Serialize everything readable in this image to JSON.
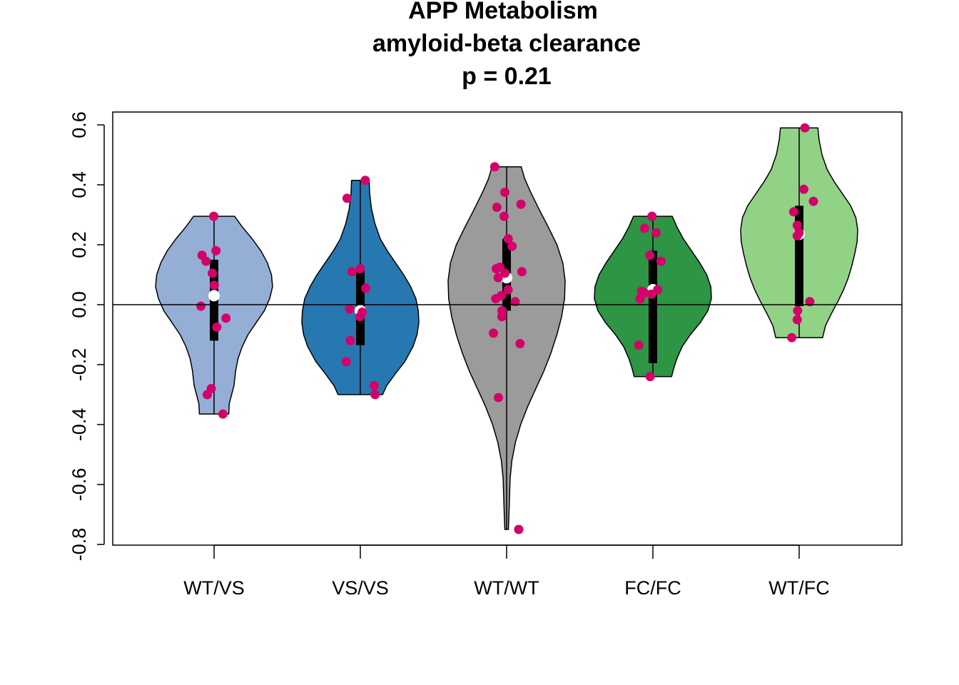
{
  "chart_data": {
    "type": "violin",
    "title_lines": [
      "APP Metabolism",
      "amyloid-beta clearance",
      "p = 0.21"
    ],
    "xlabel": "",
    "ylabel": "",
    "ylim": [
      -0.8,
      0.6
    ],
    "y_ticks": [
      -0.8,
      -0.6,
      -0.4,
      -0.2,
      0.0,
      0.2,
      0.4,
      0.6
    ],
    "y_tick_labels": [
      "-0.8",
      "-0.6",
      "-0.4",
      "-0.2",
      "0.0",
      "0.2",
      "0.4",
      "0.6"
    ],
    "reference_line": 0.0,
    "categories": [
      "WT/VS",
      "VS/VS",
      "WT/WT",
      "FC/FC",
      "WT/FC"
    ],
    "point_color": "#d4006a",
    "median_color": "#ffffff",
    "series": [
      {
        "fill": "#95aed6",
        "min": -0.365,
        "q1": -0.12,
        "median": 0.03,
        "q3": 0.15,
        "max": 0.295,
        "density": [
          [
            -0.365,
            0.25
          ],
          [
            -0.33,
            0.26
          ],
          [
            -0.3,
            0.3
          ],
          [
            -0.27,
            0.34
          ],
          [
            -0.22,
            0.37
          ],
          [
            -0.18,
            0.41
          ],
          [
            -0.14,
            0.48
          ],
          [
            -0.1,
            0.58
          ],
          [
            -0.06,
            0.72
          ],
          [
            -0.02,
            0.86
          ],
          [
            0.02,
            0.95
          ],
          [
            0.06,
            1.0
          ],
          [
            0.1,
            0.98
          ],
          [
            0.14,
            0.91
          ],
          [
            0.18,
            0.8
          ],
          [
            0.22,
            0.65
          ],
          [
            0.26,
            0.48
          ],
          [
            0.295,
            0.35
          ]
        ],
        "points": [
          0.295,
          0.18,
          0.165,
          0.145,
          0.105,
          0.065,
          -0.005,
          -0.045,
          -0.075,
          -0.28,
          -0.3,
          -0.365
        ]
      },
      {
        "fill": "#2778b1",
        "min": -0.3,
        "q1": -0.135,
        "median": -0.02,
        "q3": 0.115,
        "max": 0.415,
        "density": [
          [
            -0.3,
            0.38
          ],
          [
            -0.27,
            0.45
          ],
          [
            -0.23,
            0.6
          ],
          [
            -0.19,
            0.76
          ],
          [
            -0.14,
            0.9
          ],
          [
            -0.1,
            0.97
          ],
          [
            -0.06,
            1.0
          ],
          [
            -0.02,
            0.99
          ],
          [
            0.02,
            0.95
          ],
          [
            0.06,
            0.86
          ],
          [
            0.1,
            0.74
          ],
          [
            0.14,
            0.6
          ],
          [
            0.18,
            0.46
          ],
          [
            0.22,
            0.34
          ],
          [
            0.27,
            0.25
          ],
          [
            0.32,
            0.19
          ],
          [
            0.37,
            0.16
          ],
          [
            0.415,
            0.15
          ]
        ],
        "points": [
          0.415,
          0.355,
          0.12,
          0.11,
          0.055,
          -0.015,
          -0.025,
          -0.04,
          -0.12,
          -0.19,
          -0.27,
          -0.3
        ]
      },
      {
        "fill": "#9b9b9b",
        "min": -0.75,
        "q1": -0.02,
        "median": 0.09,
        "q3": 0.22,
        "max": 0.46,
        "density": [
          [
            -0.75,
            0.03
          ],
          [
            -0.7,
            0.04
          ],
          [
            -0.64,
            0.05
          ],
          [
            -0.58,
            0.06
          ],
          [
            -0.52,
            0.09
          ],
          [
            -0.46,
            0.15
          ],
          [
            -0.4,
            0.24
          ],
          [
            -0.34,
            0.36
          ],
          [
            -0.28,
            0.5
          ],
          [
            -0.22,
            0.64
          ],
          [
            -0.16,
            0.76
          ],
          [
            -0.1,
            0.86
          ],
          [
            -0.04,
            0.94
          ],
          [
            0.02,
            0.99
          ],
          [
            0.08,
            1.0
          ],
          [
            0.14,
            0.96
          ],
          [
            0.2,
            0.86
          ],
          [
            0.26,
            0.71
          ],
          [
            0.32,
            0.55
          ],
          [
            0.38,
            0.4
          ],
          [
            0.42,
            0.31
          ],
          [
            0.46,
            0.25
          ]
        ],
        "points": [
          0.46,
          0.375,
          0.335,
          0.325,
          0.295,
          0.22,
          0.195,
          0.125,
          0.12,
          0.11,
          0.105,
          0.09,
          0.05,
          0.03,
          0.02,
          0.01,
          -0.02,
          -0.04,
          -0.095,
          -0.13,
          -0.31,
          -0.75
        ]
      },
      {
        "fill": "#2d9544",
        "min": -0.24,
        "q1": -0.195,
        "median": 0.05,
        "q3": 0.18,
        "max": 0.295,
        "density": [
          [
            -0.24,
            0.32
          ],
          [
            -0.21,
            0.36
          ],
          [
            -0.18,
            0.41
          ],
          [
            -0.14,
            0.5
          ],
          [
            -0.1,
            0.64
          ],
          [
            -0.06,
            0.81
          ],
          [
            -0.02,
            0.94
          ],
          [
            0.02,
            1.0
          ],
          [
            0.06,
            0.99
          ],
          [
            0.1,
            0.92
          ],
          [
            0.14,
            0.8
          ],
          [
            0.18,
            0.66
          ],
          [
            0.22,
            0.52
          ],
          [
            0.26,
            0.41
          ],
          [
            0.295,
            0.33
          ]
        ],
        "points": [
          0.295,
          0.255,
          0.24,
          0.165,
          0.145,
          0.05,
          0.045,
          0.04,
          0.035,
          0.02,
          -0.135,
          -0.24
        ]
      },
      {
        "fill": "#92d287",
        "min": -0.11,
        "q1": -0.005,
        "median": 0.235,
        "q3": 0.33,
        "max": 0.59,
        "density": [
          [
            -0.11,
            0.4
          ],
          [
            -0.07,
            0.45
          ],
          [
            -0.03,
            0.55
          ],
          [
            0.01,
            0.66
          ],
          [
            0.05,
            0.76
          ],
          [
            0.09,
            0.84
          ],
          [
            0.13,
            0.9
          ],
          [
            0.17,
            0.95
          ],
          [
            0.21,
            0.99
          ],
          [
            0.25,
            1.0
          ],
          [
            0.29,
            0.97
          ],
          [
            0.33,
            0.88
          ],
          [
            0.37,
            0.74
          ],
          [
            0.41,
            0.6
          ],
          [
            0.45,
            0.48
          ],
          [
            0.5,
            0.39
          ],
          [
            0.55,
            0.34
          ],
          [
            0.59,
            0.32
          ]
        ],
        "points": [
          0.59,
          0.385,
          0.345,
          0.31,
          0.265,
          0.24,
          0.23,
          0.01,
          -0.02,
          -0.05,
          -0.11
        ]
      }
    ]
  }
}
